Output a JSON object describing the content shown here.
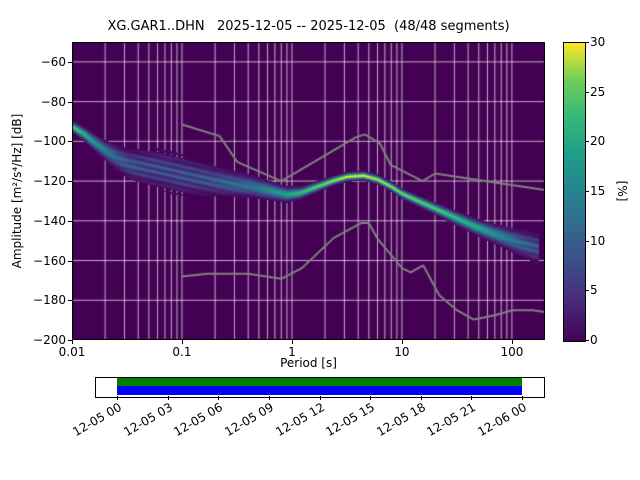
{
  "title": "XG.GAR1..DHN   2025-12-05 -- 2025-12-05  (48/48 segments)",
  "axes": {
    "xlabel": "Period [s]",
    "ylabel": "Amplitude [m²/s⁴/Hz] [dB]",
    "x_ticks": [
      "0.01",
      "0.1",
      "1",
      "10",
      "100"
    ],
    "y_ticks": [
      "−60",
      "−80",
      "−100",
      "−120",
      "−140",
      "−160",
      "−180",
      "−200"
    ]
  },
  "colorbar": {
    "label": "[%]",
    "ticks": [
      "0",
      "5",
      "10",
      "15",
      "20",
      "25",
      "30"
    ]
  },
  "timeline": {
    "labels": [
      "12-05 00",
      "12-05 03",
      "12-05 06",
      "12-05 09",
      "12-05 12",
      "12-05 15",
      "12-05 18",
      "12-05 21",
      "12-06 00"
    ],
    "bar_colors": {
      "top": "#008000",
      "bottom": "#0000ff"
    }
  },
  "chart_data": {
    "type": "heatmap",
    "title": "XG.GAR1..DHN   2025-12-05 -- 2025-12-05  (48/48 segments)",
    "subtitle": "Probabilistic power spectral density",
    "xlabel": "Period [s]",
    "ylabel": "Amplitude [m^2/s^4/Hz] [dB]",
    "x_scale": "log",
    "xlim": [
      0.01,
      200
    ],
    "ylim": [
      -200,
      -50
    ],
    "x_tick_values": [
      0.01,
      0.1,
      1,
      10,
      100
    ],
    "y_tick_values": [
      -60,
      -80,
      -100,
      -120,
      -140,
      -160,
      -180,
      -200
    ],
    "colorbar_tick_values": [
      0,
      5,
      10,
      15,
      20,
      25,
      30
    ],
    "prob_max": 30,
    "grid": true,
    "segments_used": 48,
    "segments_total": 48,
    "background_color": "#440154",
    "grid_color": "#ffffff",
    "colormap": "viridis",
    "colormap_stops": [
      [
        0.0,
        "#440154"
      ],
      [
        0.125,
        "#482878"
      ],
      [
        0.25,
        "#3e4a89"
      ],
      [
        0.375,
        "#31688e"
      ],
      [
        0.5,
        "#26828e"
      ],
      [
        0.625,
        "#1f9e89"
      ],
      [
        0.75,
        "#35b779"
      ],
      [
        0.875,
        "#6ece58"
      ],
      [
        1.0,
        "#fde725"
      ]
    ],
    "psd_distribution": [
      {
        "period": 0.01,
        "db": -92.5,
        "spread": 1.2,
        "percent": 26
      },
      {
        "period": 0.013,
        "db": -96.5,
        "spread": 1.5,
        "percent": 22
      },
      {
        "period": 0.016,
        "db": -100.5,
        "spread": 1.8,
        "percent": 18
      },
      {
        "period": 0.02,
        "db": -104.5,
        "spread": 2.2,
        "percent": 15
      },
      {
        "period": 0.026,
        "db": -108.5,
        "spread": 2.8,
        "percent": 12
      },
      {
        "period": 0.033,
        "db": -111.5,
        "spread": 3.4,
        "percent": 10.5
      },
      {
        "period": 0.045,
        "db": -113.0,
        "spread": 4.2,
        "percent": 10
      },
      {
        "period": 0.06,
        "db": -114.0,
        "spread": 4.6,
        "percent": 9.5
      },
      {
        "period": 0.08,
        "db": -115.5,
        "spread": 4.8,
        "percent": 9.5
      },
      {
        "period": 0.1,
        "db": -117.0,
        "spread": 4.6,
        "percent": 10
      },
      {
        "period": 0.14,
        "db": -118.5,
        "spread": 4.0,
        "percent": 10.5
      },
      {
        "period": 0.2,
        "db": -120.0,
        "spread": 3.4,
        "percent": 11
      },
      {
        "period": 0.3,
        "db": -121.5,
        "spread": 2.9,
        "percent": 12.5
      },
      {
        "period": 0.45,
        "db": -123.0,
        "spread": 2.4,
        "percent": 14
      },
      {
        "period": 0.65,
        "db": -125.0,
        "spread": 2.0,
        "percent": 17
      },
      {
        "period": 0.9,
        "db": -126.8,
        "spread": 1.6,
        "percent": 20
      },
      {
        "period": 1.2,
        "db": -126.0,
        "spread": 1.3,
        "percent": 23
      },
      {
        "period": 1.7,
        "db": -122.8,
        "spread": 1.1,
        "percent": 26
      },
      {
        "period": 2.4,
        "db": -119.8,
        "spread": 1.0,
        "percent": 28
      },
      {
        "period": 3.2,
        "db": -117.8,
        "spread": 0.95,
        "percent": 30
      },
      {
        "period": 4.5,
        "db": -117.3,
        "spread": 0.95,
        "percent": 30
      },
      {
        "period": 6.0,
        "db": -119.2,
        "spread": 1.0,
        "percent": 29
      },
      {
        "period": 8.0,
        "db": -122.8,
        "spread": 1.0,
        "percent": 28
      },
      {
        "period": 10.0,
        "db": -126.3,
        "spread": 1.05,
        "percent": 27
      },
      {
        "period": 14.0,
        "db": -130.0,
        "spread": 1.15,
        "percent": 26
      },
      {
        "period": 20.0,
        "db": -133.8,
        "spread": 1.25,
        "percent": 25
      },
      {
        "period": 30.0,
        "db": -138.2,
        "spread": 1.45,
        "percent": 23
      },
      {
        "period": 45.0,
        "db": -142.6,
        "spread": 1.7,
        "percent": 21
      },
      {
        "period": 65.0,
        "db": -146.0,
        "spread": 2.0,
        "percent": 18
      },
      {
        "period": 90.0,
        "db": -148.8,
        "spread": 2.4,
        "percent": 15
      },
      {
        "period": 120.0,
        "db": -151.2,
        "spread": 2.9,
        "percent": 13
      },
      {
        "period": 175.0,
        "db": -154.0,
        "spread": 3.6,
        "percent": 10
      }
    ],
    "noise_models": {
      "color": "#808080",
      "high": [
        [
          0.1,
          -91.5
        ],
        [
          0.22,
          -97.4
        ],
        [
          0.32,
          -110.5
        ],
        [
          0.8,
          -120.0
        ],
        [
          3.8,
          -98.0
        ],
        [
          4.6,
          -96.5
        ],
        [
          6.3,
          -101.0
        ],
        [
          7.9,
          -111.8
        ],
        [
          15.4,
          -120.0
        ],
        [
          20.0,
          -116.2
        ],
        [
          200.0,
          -124.5
        ]
      ],
      "low": [
        [
          0.1,
          -168.0
        ],
        [
          0.17,
          -166.7
        ],
        [
          0.4,
          -166.7
        ],
        [
          0.8,
          -169.2
        ],
        [
          1.24,
          -163.7
        ],
        [
          2.4,
          -148.6
        ],
        [
          4.3,
          -141.1
        ],
        [
          5.0,
          -141.1
        ],
        [
          6.0,
          -149.0
        ],
        [
          10.0,
          -163.8
        ],
        [
          12.0,
          -166.0
        ],
        [
          15.6,
          -162.4
        ],
        [
          21.9,
          -177.5
        ],
        [
          31.6,
          -185.0
        ],
        [
          45.0,
          -189.7
        ],
        [
          70.0,
          -187.5
        ],
        [
          101.0,
          -185.0
        ],
        [
          154.0,
          -185.0
        ],
        [
          200.0,
          -185.9
        ]
      ]
    }
  }
}
